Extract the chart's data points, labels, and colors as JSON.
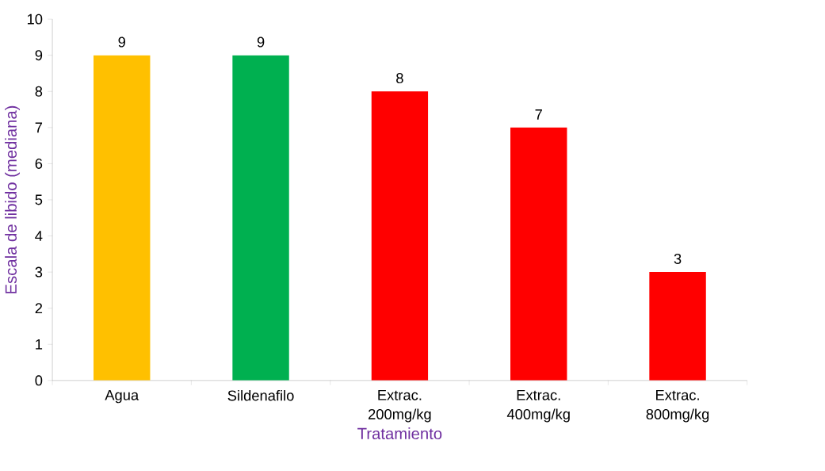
{
  "chart_data": {
    "type": "bar",
    "xlabel": "Tratamiento",
    "ylabel": "Escala de libido (mediana)",
    "categories": [
      "Agua",
      "Sildenafilo",
      "Extrac. 200mg/kg",
      "Extrac. 400mg/kg",
      "Extrac. 800mg/kg"
    ],
    "values": [
      9,
      9,
      8,
      7,
      3
    ],
    "colors": [
      "#ffc000",
      "#00b050",
      "#ff0000",
      "#ff0000",
      "#ff0000"
    ],
    "ylim": [
      0,
      10
    ],
    "yticks": [
      0,
      1,
      2,
      3,
      4,
      5,
      6,
      7,
      8,
      9,
      10
    ],
    "data_labels": true
  }
}
